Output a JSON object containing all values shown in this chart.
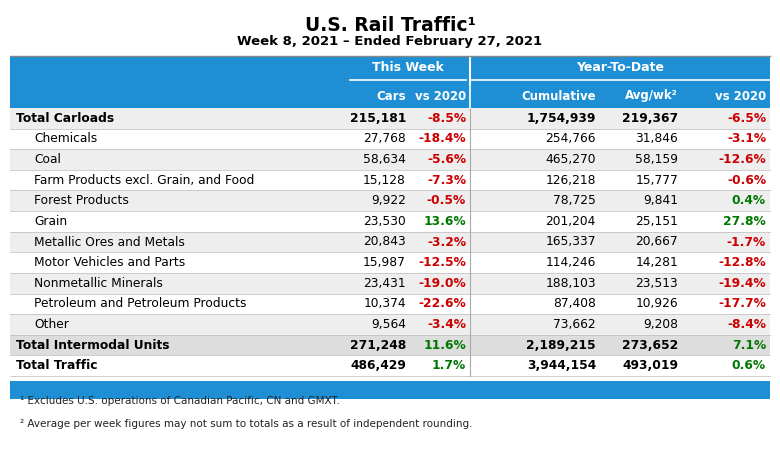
{
  "title": "U.S. Rail Traffic¹",
  "subtitle": "Week 8, 2021 – Ended February 27, 2021",
  "header_bg": "#1E8FD5",
  "header_text": "#FFFFFF",
  "col_headers_level2": [
    "",
    "Cars",
    "vs 2020",
    "Cumulative",
    "Avg/wk²",
    "vs 2020"
  ],
  "rows": [
    {
      "label": "Total Carloads",
      "cars": "215,181",
      "vs2020_week": "-8.5%",
      "cumulative": "1,754,939",
      "avg_wk": "219,367",
      "vs2020_ytd": "-6.5%",
      "bold": true,
      "bg": "#EEEEEE",
      "indent": false
    },
    {
      "label": "Chemicals",
      "cars": "27,768",
      "vs2020_week": "-18.4%",
      "cumulative": "254,766",
      "avg_wk": "31,846",
      "vs2020_ytd": "-3.1%",
      "bold": false,
      "bg": "#FFFFFF",
      "indent": true
    },
    {
      "label": "Coal",
      "cars": "58,634",
      "vs2020_week": "-5.6%",
      "cumulative": "465,270",
      "avg_wk": "58,159",
      "vs2020_ytd": "-12.6%",
      "bold": false,
      "bg": "#EEEEEE",
      "indent": true
    },
    {
      "label": "Farm Products excl. Grain, and Food",
      "cars": "15,128",
      "vs2020_week": "-7.3%",
      "cumulative": "126,218",
      "avg_wk": "15,777",
      "vs2020_ytd": "-0.6%",
      "bold": false,
      "bg": "#FFFFFF",
      "indent": true
    },
    {
      "label": "Forest Products",
      "cars": "9,922",
      "vs2020_week": "-0.5%",
      "cumulative": "78,725",
      "avg_wk": "9,841",
      "vs2020_ytd": "0.4%",
      "bold": false,
      "bg": "#EEEEEE",
      "indent": true
    },
    {
      "label": "Grain",
      "cars": "23,530",
      "vs2020_week": "13.6%",
      "cumulative": "201,204",
      "avg_wk": "25,151",
      "vs2020_ytd": "27.8%",
      "bold": false,
      "bg": "#FFFFFF",
      "indent": true
    },
    {
      "label": "Metallic Ores and Metals",
      "cars": "20,843",
      "vs2020_week": "-3.2%",
      "cumulative": "165,337",
      "avg_wk": "20,667",
      "vs2020_ytd": "-1.7%",
      "bold": false,
      "bg": "#EEEEEE",
      "indent": true
    },
    {
      "label": "Motor Vehicles and Parts",
      "cars": "15,987",
      "vs2020_week": "-12.5%",
      "cumulative": "114,246",
      "avg_wk": "14,281",
      "vs2020_ytd": "-12.8%",
      "bold": false,
      "bg": "#FFFFFF",
      "indent": true
    },
    {
      "label": "Nonmetallic Minerals",
      "cars": "23,431",
      "vs2020_week": "-19.0%",
      "cumulative": "188,103",
      "avg_wk": "23,513",
      "vs2020_ytd": "-19.4%",
      "bold": false,
      "bg": "#EEEEEE",
      "indent": true
    },
    {
      "label": "Petroleum and Petroleum Products",
      "cars": "10,374",
      "vs2020_week": "-22.6%",
      "cumulative": "87,408",
      "avg_wk": "10,926",
      "vs2020_ytd": "-17.7%",
      "bold": false,
      "bg": "#FFFFFF",
      "indent": true
    },
    {
      "label": "Other",
      "cars": "9,564",
      "vs2020_week": "-3.4%",
      "cumulative": "73,662",
      "avg_wk": "9,208",
      "vs2020_ytd": "-8.4%",
      "bold": false,
      "bg": "#EEEEEE",
      "indent": true
    },
    {
      "label": "Total Intermodal Units",
      "cars": "271,248",
      "vs2020_week": "11.6%",
      "cumulative": "2,189,215",
      "avg_wk": "273,652",
      "vs2020_ytd": "7.1%",
      "bold": true,
      "bg": "#DDDDDD",
      "indent": false
    },
    {
      "label": "Total Traffic",
      "cars": "486,429",
      "vs2020_week": "1.7%",
      "cumulative": "3,944,154",
      "avg_wk": "493,019",
      "vs2020_ytd": "0.6%",
      "bold": true,
      "bg": "#FFFFFF",
      "indent": false
    }
  ],
  "footnotes": [
    "¹ Excludes U.S. operations of Canadian Pacific, CN and GMXT.",
    "² Average per week figures may not sum to totals as a result of independent rounding."
  ],
  "positive_color": "#007700",
  "negative_color": "#CC0000",
  "neutral_color": "#000000",
  "fig_width": 7.8,
  "fig_height": 4.71,
  "dpi": 100
}
